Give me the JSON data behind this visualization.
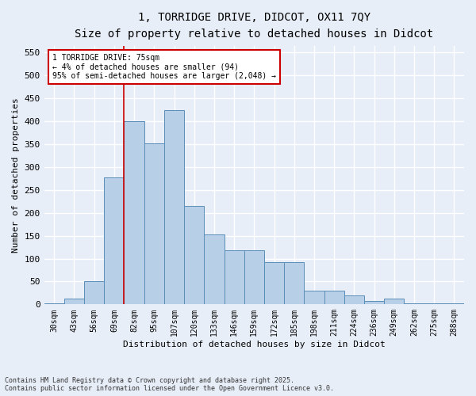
{
  "title1": "1, TORRIDGE DRIVE, DIDCOT, OX11 7QY",
  "title2": "Size of property relative to detached houses in Didcot",
  "xlabel": "Distribution of detached houses by size in Didcot",
  "ylabel": "Number of detached properties",
  "footnote1": "Contains HM Land Registry data © Crown copyright and database right 2025.",
  "footnote2": "Contains public sector information licensed under the Open Government Licence v3.0.",
  "categories": [
    "30sqm",
    "43sqm",
    "56sqm",
    "69sqm",
    "82sqm",
    "95sqm",
    "107sqm",
    "120sqm",
    "133sqm",
    "146sqm",
    "159sqm",
    "172sqm",
    "185sqm",
    "198sqm",
    "211sqm",
    "224sqm",
    "236sqm",
    "249sqm",
    "262sqm",
    "275sqm",
    "288sqm"
  ],
  "values": [
    3,
    12,
    50,
    278,
    400,
    352,
    425,
    215,
    152,
    118,
    118,
    93,
    93,
    30,
    30,
    20,
    8,
    12,
    3,
    2,
    2
  ],
  "bar_color": "#b8cfe8",
  "bar_edge_color": "#5b8db8",
  "annotation_text": "1 TORRIDGE DRIVE: 75sqm\n← 4% of detached houses are smaller (94)\n95% of semi-detached houses are larger (2,048) →",
  "annotation_box_color": "#ffffff",
  "annotation_box_edge_color": "#cc0000",
  "vline_x": 3.5,
  "vline_color": "#cc0000",
  "background_color": "#e8eef8",
  "grid_color": "#ffffff",
  "ylim": [
    0,
    565
  ],
  "yticks": [
    0,
    50,
    100,
    150,
    200,
    250,
    300,
    350,
    400,
    450,
    500,
    550
  ]
}
